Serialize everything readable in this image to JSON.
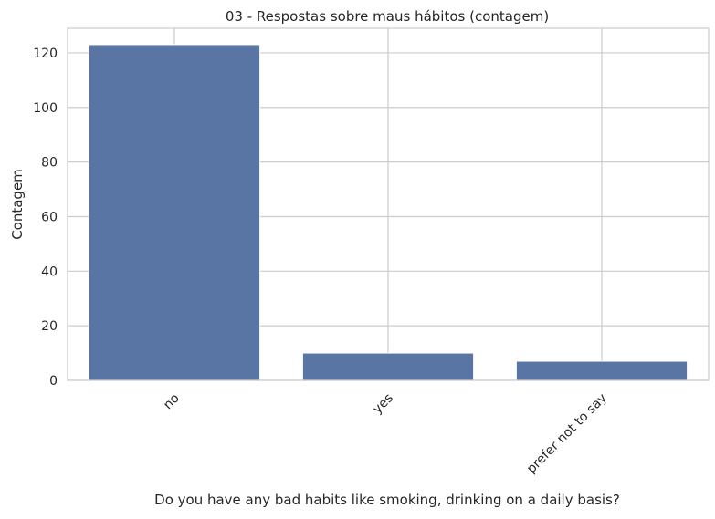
{
  "chart_data": {
    "type": "bar",
    "title": "03 - Respostas sobre maus hábitos (contagem)",
    "xlabel": "Do you have any bad habits like smoking, drinking on a daily basis?",
    "ylabel": "Contagem",
    "categories": [
      "no",
      "yes",
      "prefer not to say"
    ],
    "values": [
      123,
      10,
      7
    ],
    "ylim": [
      0,
      129
    ],
    "yticks": [
      0,
      20,
      40,
      60,
      80,
      100,
      120
    ],
    "grid": true,
    "bar_color": "#5975a4",
    "grid_color": "#cccccc"
  }
}
